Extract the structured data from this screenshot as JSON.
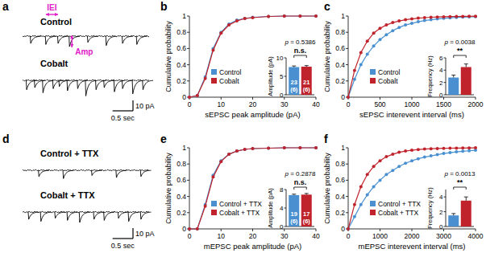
{
  "panel_labels": [
    "a",
    "b",
    "c",
    "d",
    "e",
    "f"
  ],
  "chart_data": [
    {
      "type": "trace",
      "xlim": [
        0,
        3.1
      ],
      "ylim": [
        -5,
        25
      ],
      "series": [
        {
          "name": "Control",
          "color": "#000000",
          "x": [
            0.2,
            0.57,
            0.87,
            1.15,
            1.6,
            2.05,
            2.45,
            2.8
          ],
          "values": [
            7,
            8,
            7,
            10,
            6,
            9,
            7,
            8
          ]
        },
        {
          "name": "Cobalt",
          "color": "#000000",
          "x": [
            0.1,
            0.3,
            0.5,
            0.75,
            0.9,
            1.1,
            1.35,
            1.55,
            1.8,
            2.0,
            2.25,
            2.45,
            2.7,
            2.95
          ],
          "values": [
            9,
            7,
            12,
            8,
            6,
            10,
            8,
            15,
            9,
            7,
            11,
            8,
            13,
            9
          ]
        }
      ],
      "annotations": {
        "interval": "IEI",
        "amplitude": "Amp"
      },
      "scale_bar": {
        "y": 10,
        "y_label": "10 pA",
        "x": 0.5,
        "x_label": "0.5 sec"
      }
    },
    {
      "type": "line",
      "xlabel": "sEPSC peak amplitude (pA)",
      "ylabel": "Cumulative probability",
      "x": [
        0,
        2.5,
        5,
        7.5,
        10,
        12.5,
        15,
        17.5,
        20,
        25,
        30,
        35,
        40
      ],
      "series": [
        {
          "name": "Control",
          "color": "#4a90d0",
          "marker": "circle",
          "line_style": "solid",
          "values": [
            0,
            0.02,
            0.25,
            0.6,
            0.8,
            0.9,
            0.95,
            0.97,
            0.985,
            0.995,
            1,
            1,
            1
          ]
        },
        {
          "name": "Cobalt",
          "color": "#c0232b",
          "marker": "circle",
          "line_style": "solid",
          "values": [
            0,
            0.02,
            0.23,
            0.58,
            0.79,
            0.89,
            0.94,
            0.97,
            0.98,
            0.995,
            1,
            1,
            1
          ]
        }
      ],
      "xlim": [
        0,
        40
      ],
      "ylim": [
        0,
        1
      ],
      "xticks": [
        0,
        10,
        20,
        30,
        40
      ],
      "yticks": [
        0,
        0.2,
        0.4,
        0.6,
        0.8,
        1
      ],
      "legend": "lower-left"
    },
    {
      "type": "bar",
      "ylabel": "Amplitude (pA)",
      "categories": [
        null,
        null
      ],
      "values": [
        7.5,
        7.6
      ],
      "errors": [
        0.3,
        0.3
      ],
      "colors": [
        "#4a90d0",
        "#c0232b"
      ],
      "ylim": [
        0,
        10
      ],
      "yticks": [
        0,
        5,
        10
      ],
      "tick_labels": "y",
      "bar_labels": [
        [
          "23",
          "(6)"
        ],
        [
          "21",
          "(6)"
        ]
      ],
      "p_label": "p = 0.5386",
      "significance": "n.s."
    },
    {
      "type": "line",
      "xlabel": "sEPSC interevent interval (ms)",
      "ylabel": "Cumulative probability",
      "x": [
        0,
        100,
        200,
        300,
        400,
        500,
        600,
        700,
        800,
        900,
        1000,
        1100,
        1200,
        1300,
        1400,
        1500,
        1600,
        1700,
        1800,
        1900,
        2000
      ],
      "series": [
        {
          "name": "Control",
          "color": "#4a90d0",
          "marker": "circle",
          "line_style": "solid",
          "values": [
            0,
            0.22,
            0.4,
            0.53,
            0.63,
            0.71,
            0.77,
            0.82,
            0.86,
            0.89,
            0.91,
            0.93,
            0.945,
            0.955,
            0.965,
            0.972,
            0.978,
            0.983,
            0.987,
            0.99,
            0.992
          ]
        },
        {
          "name": "Cobalt",
          "color": "#c0232b",
          "marker": "circle",
          "line_style": "solid",
          "values": [
            0,
            0.33,
            0.55,
            0.69,
            0.79,
            0.85,
            0.89,
            0.92,
            0.94,
            0.955,
            0.965,
            0.975,
            0.98,
            0.985,
            0.988,
            0.991,
            0.993,
            0.995,
            0.996,
            0.997,
            0.998
          ]
        }
      ],
      "xlim": [
        0,
        2000
      ],
      "ylim": [
        0,
        1
      ],
      "xticks": [
        0,
        500,
        1000,
        1500,
        2000
      ],
      "yticks": [
        0,
        0.2,
        0.4,
        0.6,
        0.8,
        1
      ],
      "legend": "lower-left"
    },
    {
      "type": "bar",
      "ylabel": "Frequency (Hz)",
      "categories": [
        null,
        null
      ],
      "values": [
        2.8,
        4.5
      ],
      "errors": [
        0.4,
        0.5
      ],
      "colors": [
        "#4a90d0",
        "#c0232b"
      ],
      "ylim": [
        0,
        6
      ],
      "yticks": [
        0,
        2,
        4,
        6
      ],
      "tick_labels": "y",
      "p_label": "p = 0.0038",
      "significance": "**"
    },
    {
      "type": "trace",
      "xlim": [
        0,
        3.1
      ],
      "ylim": [
        -5,
        25
      ],
      "series": [
        {
          "name": "Control + TTX",
          "color": "#000000",
          "x": [
            0.4,
            1.0,
            1.7,
            2.3,
            2.9
          ],
          "values": [
            6,
            8,
            5,
            7,
            6
          ]
        },
        {
          "name": "Cobalt + TTX",
          "color": "#000000",
          "x": [
            0.15,
            0.45,
            0.8,
            1.1,
            1.4,
            1.75,
            2.0,
            2.35,
            2.6,
            2.9
          ],
          "values": [
            7,
            9,
            6,
            8,
            10,
            7,
            8,
            6,
            9,
            7
          ]
        }
      ],
      "scale_bar": {
        "y": 10,
        "y_label": "10 pA",
        "x": 0.5,
        "x_label": "0.5 sec"
      }
    },
    {
      "type": "line",
      "xlabel": "mEPSC peak amplitude (pA)",
      "ylabel": "Cumulative probability",
      "x": [
        0,
        2.5,
        5,
        7.5,
        10,
        12.5,
        15,
        17.5,
        20,
        25,
        30,
        35,
        40
      ],
      "series": [
        {
          "name": "Control + TTX",
          "color": "#4a90d0",
          "marker": "circle",
          "line_style": "solid",
          "values": [
            0,
            0,
            0.3,
            0.66,
            0.84,
            0.92,
            0.96,
            0.98,
            0.99,
            0.995,
            1,
            1,
            1
          ]
        },
        {
          "name": "Cobalt + TTX",
          "color": "#c0232b",
          "marker": "circle",
          "line_style": "solid",
          "values": [
            0,
            0,
            0.28,
            0.64,
            0.83,
            0.92,
            0.96,
            0.98,
            0.99,
            0.995,
            1,
            1,
            1
          ]
        }
      ],
      "xlim": [
        0,
        40
      ],
      "ylim": [
        0,
        1
      ],
      "xticks": [
        0,
        10,
        20,
        30,
        40
      ],
      "yticks": [
        0,
        0.2,
        0.4,
        0.6,
        0.8,
        1
      ],
      "legend": "lower-left"
    },
    {
      "type": "bar",
      "ylabel": "Amplitude (pA)",
      "categories": [
        null,
        null
      ],
      "values": [
        6.8,
        6.9
      ],
      "errors": [
        0.2,
        0.25
      ],
      "colors": [
        "#4a90d0",
        "#c0232b"
      ],
      "ylim": [
        0,
        8
      ],
      "yticks": [
        0,
        4,
        8
      ],
      "tick_labels": "y",
      "bar_labels": [
        [
          "19",
          "(6)"
        ],
        [
          "17",
          "(6)"
        ]
      ],
      "p_label": "p = 0.2878",
      "significance": "n.s."
    },
    {
      "type": "line",
      "xlabel": "mEPSC interevent interval (ms)",
      "ylabel": "Cumulative probability",
      "x": [
        0,
        200,
        400,
        600,
        800,
        1000,
        1200,
        1400,
        1600,
        1800,
        2000,
        2200,
        2400,
        2600,
        2800,
        3000,
        3200,
        3400,
        3600,
        3800,
        4000
      ],
      "series": [
        {
          "name": "Control + TTX",
          "color": "#4a90d0",
          "marker": "circle",
          "line_style": "solid",
          "values": [
            0,
            0.15,
            0.3,
            0.42,
            0.52,
            0.6,
            0.67,
            0.72,
            0.77,
            0.81,
            0.84,
            0.865,
            0.885,
            0.9,
            0.915,
            0.93,
            0.94,
            0.95,
            0.957,
            0.963,
            0.97
          ]
        },
        {
          "name": "Cobalt + TTX",
          "color": "#c0232b",
          "marker": "circle",
          "line_style": "solid",
          "values": [
            0,
            0.3,
            0.52,
            0.67,
            0.77,
            0.84,
            0.89,
            0.92,
            0.945,
            0.96,
            0.97,
            0.978,
            0.984,
            0.988,
            0.991,
            0.993,
            0.995,
            0.996,
            0.997,
            0.998,
            0.999
          ]
        }
      ],
      "xlim": [
        0,
        4000
      ],
      "ylim": [
        0,
        1
      ],
      "xticks": [
        0,
        1000,
        2000,
        3000,
        4000
      ],
      "yticks": [
        0,
        0.2,
        0.4,
        0.6,
        0.8,
        1
      ],
      "legend": "lower-left"
    },
    {
      "type": "bar",
      "ylabel": "Frequency (Hz)",
      "categories": [
        null,
        null
      ],
      "values": [
        1.5,
        3.5
      ],
      "errors": [
        0.25,
        0.5
      ],
      "colors": [
        "#4a90d0",
        "#c0232b"
      ],
      "ylim": [
        0,
        5
      ],
      "yticks": [
        0,
        2,
        4
      ],
      "tick_labels": "y",
      "p_label": "p = 0.0013",
      "significance": "**"
    }
  ]
}
